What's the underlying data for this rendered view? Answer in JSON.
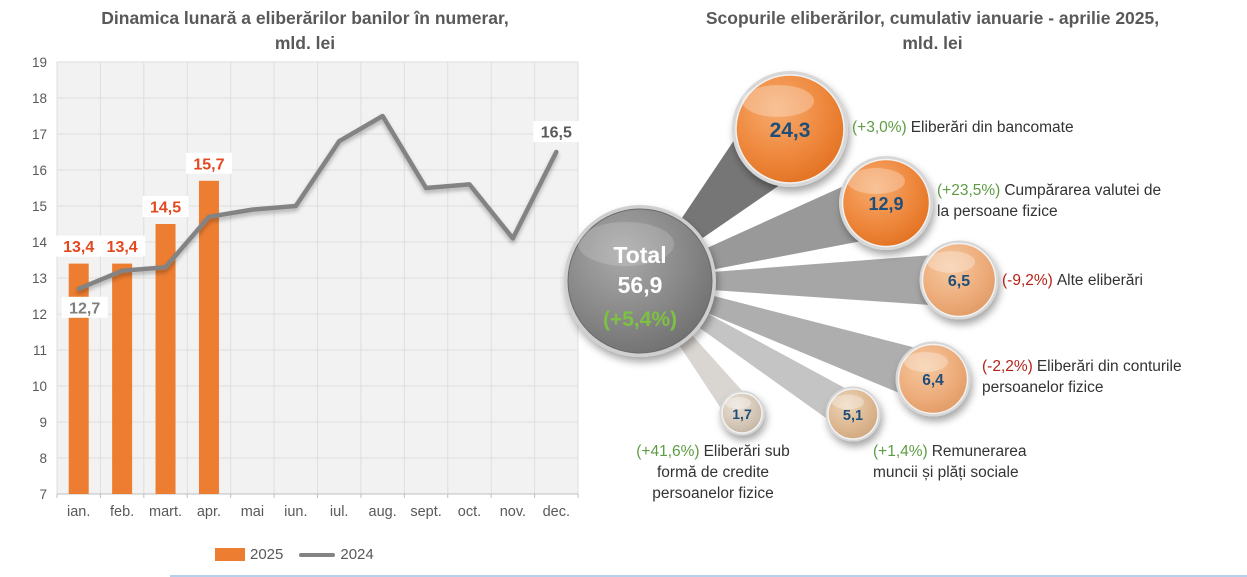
{
  "page": {
    "background": "#FFFFFF"
  },
  "colors": {
    "bar_2025": "#ED7D31",
    "line_2024": "#838383",
    "bar_label": "#E2491F",
    "line_label_ian": "#7F7F7F",
    "line_label_dec": "#595959",
    "axis_text": "#595959",
    "title_text": "#595959",
    "bubble_value_text": "#1F4E79",
    "positive_pct_green": "#5E9C44",
    "negative_pct_red": "#B42318",
    "total_pct_green": "#7DC142",
    "total_circle_gray": "#8A8A8A"
  },
  "chart_data": [
    {
      "type": "bar",
      "title": "Dinamica lunară a eliberărilor banilor în numerar, mld. lei",
      "title_lines": [
        "Dinamica lunară a eliberărilor banilor în numerar,",
        "mld. lei"
      ],
      "categories": [
        "ian.",
        "feb.",
        "mart.",
        "apr.",
        "mai",
        "iun.",
        "iul.",
        "aug.",
        "sept.",
        "oct.",
        "nov.",
        "dec."
      ],
      "series": [
        {
          "name": "2025",
          "type": "bar",
          "color": "#ED7D31",
          "values": [
            13.4,
            13.4,
            14.5,
            15.7,
            null,
            null,
            null,
            null,
            null,
            null,
            null,
            null
          ],
          "labels": [
            "13,4",
            "13,4",
            "14,5",
            "15,7"
          ]
        },
        {
          "name": "2024",
          "type": "line",
          "color": "#838383",
          "values": [
            12.7,
            13.2,
            13.3,
            14.7,
            14.9,
            15.0,
            16.8,
            17.5,
            15.5,
            15.6,
            14.1,
            16.5
          ],
          "point_labels": [
            {
              "index": 0,
              "text": "12,7",
              "placement": "below"
            },
            {
              "index": 11,
              "text": "16,5",
              "placement": "above"
            }
          ]
        }
      ],
      "ylim": [
        7,
        19
      ],
      "ytick_step": 1,
      "grid": true,
      "legend_position": "bottom"
    },
    {
      "type": "bubble",
      "title": "Scopurile eliberărilor, cumulativ ianuarie - aprilie 2025, mld. lei",
      "title_lines": [
        "Scopurile eliberărilor, cumulativ ianuarie - aprilie 2025,",
        "mld. lei"
      ],
      "total": {
        "label": "Total",
        "value": "56,9",
        "pct": "(+5,4%)"
      },
      "items": [
        {
          "value": "24,3",
          "pct": "(+3,0%)",
          "label": "Eliberări din bancomate",
          "trend": "up"
        },
        {
          "value": "12,9",
          "pct": "(+23,5%)",
          "label": "Cumpărarea valutei de la persoane fizice",
          "trend": "up"
        },
        {
          "value": "6,5",
          "pct": "(-9,2%)",
          "label": "Alte eliberări",
          "trend": "down"
        },
        {
          "value": "6,4",
          "pct": "(-2,2%)",
          "label": "Eliberări din conturile persoanelor fizice",
          "trend": "down"
        },
        {
          "value": "5,1",
          "pct": "(+1,4%)",
          "label": "Remunerarea muncii și plăți sociale",
          "trend": "up"
        },
        {
          "value": "1,7",
          "pct": "(+41,6%)",
          "label": "Eliberări sub formă de credite persoanelor fizice",
          "trend": "up"
        }
      ]
    }
  ]
}
